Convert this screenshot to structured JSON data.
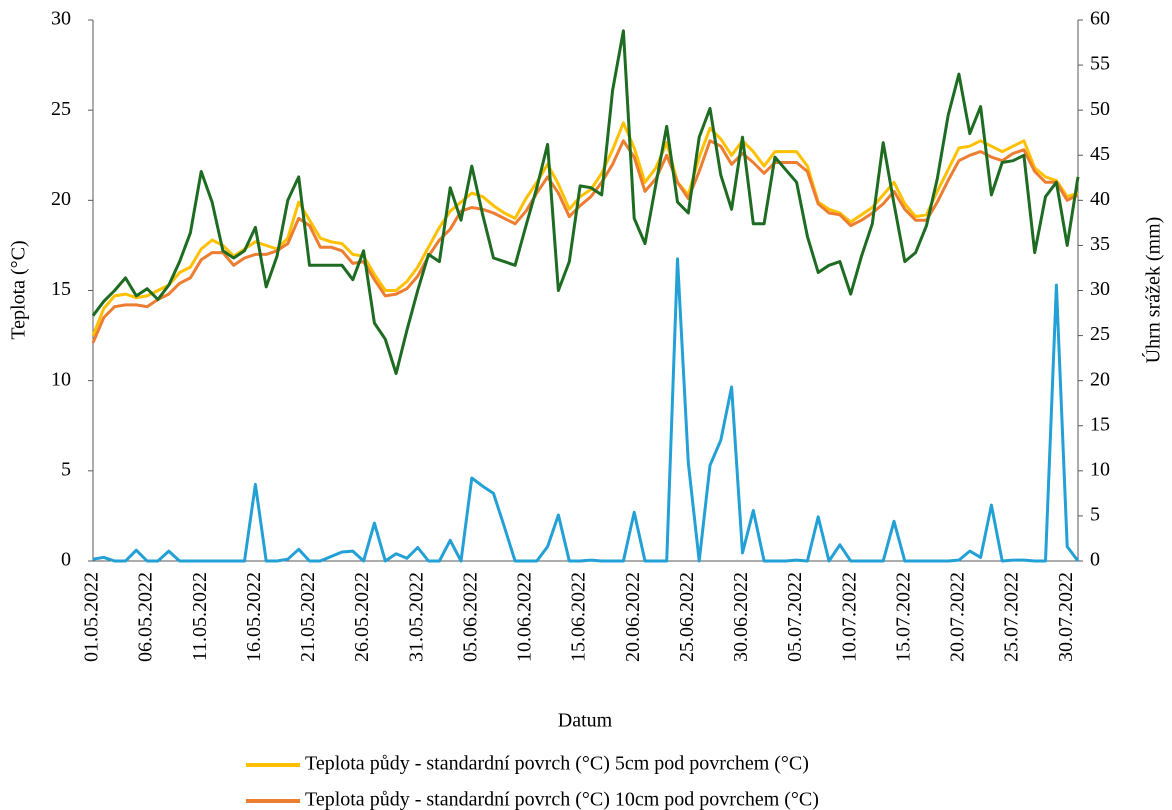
{
  "chart_data": {
    "type": "line",
    "x_label": "Datum",
    "y_label": "Teplota (°C)",
    "y2_label": "Úhrn srážek (mm)",
    "categories": [
      "01.05.2022",
      null,
      null,
      null,
      null,
      "06.05.2022",
      null,
      null,
      null,
      null,
      "11.05.2022",
      null,
      null,
      null,
      null,
      "16.05.2022",
      null,
      null,
      null,
      null,
      "21.05.2022",
      null,
      null,
      null,
      null,
      "26.05.2022",
      null,
      null,
      null,
      null,
      "31.05.2022",
      null,
      null,
      null,
      null,
      "05.06.2022",
      null,
      null,
      null,
      null,
      "10.06.2022",
      null,
      null,
      null,
      null,
      "15.06.2022",
      null,
      null,
      null,
      null,
      "20.06.2022",
      null,
      null,
      null,
      null,
      "25.06.2022",
      null,
      null,
      null,
      null,
      "30.06.2022",
      null,
      null,
      null,
      null,
      "05.07.2022",
      null,
      null,
      null,
      null,
      "10.07.2022",
      null,
      null,
      null,
      null,
      "15.07.2022",
      null,
      null,
      null,
      null,
      "20.07.2022",
      null,
      null,
      null,
      null,
      "25.07.2022",
      null,
      null,
      null,
      null,
      "30.07.2022",
      null
    ],
    "ylim": [
      0,
      30
    ],
    "yticks": [
      0,
      5,
      10,
      15,
      20,
      25,
      30
    ],
    "y2lim": [
      0,
      60
    ],
    "y2ticks": [
      0,
      5,
      10,
      15,
      20,
      25,
      30,
      35,
      40,
      45,
      50,
      55,
      60
    ],
    "series": [
      {
        "name": "Teplota půdy - standardní povrch (°C) 5cm pod povrchem (°C)",
        "color": "#FFC000",
        "values": [
          12.5,
          14.0,
          14.7,
          14.8,
          14.6,
          14.7,
          15.0,
          15.3,
          16.0,
          16.3,
          17.3,
          17.8,
          17.5,
          16.9,
          17.3,
          17.7,
          17.5,
          17.3,
          17.9,
          19.9,
          18.9,
          17.9,
          17.7,
          17.6,
          17.0,
          16.9,
          15.9,
          15.0,
          15.0,
          15.5,
          16.3,
          17.4,
          18.5,
          19.4,
          19.9,
          20.4,
          20.2,
          19.7,
          19.3,
          19.0,
          20.1,
          21.0,
          22.0,
          20.9,
          19.5,
          20.2,
          20.6,
          21.5,
          22.8,
          24.3,
          22.9,
          21.0,
          21.8,
          23.2,
          21.0,
          20.3,
          22.4,
          24.0,
          23.4,
          22.5,
          23.3,
          22.7,
          21.9,
          22.7,
          22.7,
          22.7,
          21.9,
          19.9,
          19.5,
          19.3,
          18.8,
          19.2,
          19.6,
          20.3,
          21.0,
          19.8,
          19.1,
          19.2,
          20.5,
          21.7,
          22.9,
          23.0,
          23.3,
          23.0,
          22.7,
          23.0,
          23.3,
          21.8,
          21.3,
          21.1,
          20.2,
          20.4
        ]
      },
      {
        "name": "Teplota půdy - standardní povrch (°C) 10cm pod povrchem (°C)",
        "color": "#ED7D31",
        "values": [
          12.1,
          13.5,
          14.1,
          14.2,
          14.2,
          14.1,
          14.5,
          14.8,
          15.4,
          15.7,
          16.7,
          17.1,
          17.1,
          16.4,
          16.8,
          17.0,
          17.0,
          17.2,
          17.6,
          19.0,
          18.6,
          17.4,
          17.4,
          17.2,
          16.5,
          16.6,
          15.6,
          14.7,
          14.8,
          15.1,
          15.8,
          16.9,
          17.8,
          18.4,
          19.4,
          19.6,
          19.5,
          19.3,
          19.0,
          18.7,
          19.4,
          20.4,
          21.3,
          20.4,
          19.1,
          19.7,
          20.2,
          21.0,
          22.0,
          23.3,
          22.4,
          20.5,
          21.2,
          22.5,
          21.0,
          20.1,
          21.6,
          23.3,
          23.0,
          22.0,
          22.6,
          22.1,
          21.5,
          22.1,
          22.1,
          22.1,
          21.6,
          19.8,
          19.3,
          19.2,
          18.6,
          18.9,
          19.3,
          19.8,
          20.5,
          19.5,
          18.9,
          18.9,
          19.9,
          21.1,
          22.2,
          22.5,
          22.7,
          22.4,
          22.2,
          22.6,
          22.8,
          21.6,
          21.0,
          21.0,
          20.0,
          20.3
        ]
      },
      {
        "color": "#1E6B22",
        "values": [
          13.6,
          14.4,
          15.0,
          15.7,
          14.7,
          15.1,
          14.5,
          15.3,
          16.6,
          18.2,
          21.6,
          19.9,
          17.2,
          16.8,
          17.2,
          18.5,
          15.2,
          16.9,
          20.0,
          21.3,
          16.4,
          16.4,
          16.4,
          16.4,
          15.6,
          17.2,
          13.2,
          12.3,
          10.4,
          12.8,
          15.0,
          17.0,
          16.6,
          20.7,
          18.9,
          21.9,
          19.2,
          16.8,
          16.6,
          16.4,
          18.6,
          20.7,
          23.1,
          15.0,
          16.6,
          20.8,
          20.7,
          20.3,
          26.1,
          29.4,
          19.0,
          17.6,
          20.9,
          24.1,
          19.9,
          19.3,
          23.5,
          25.1,
          21.4,
          19.5,
          23.5,
          18.7,
          18.7,
          22.4,
          21.7,
          21.0,
          18.0,
          16.0,
          16.4,
          16.6,
          14.8,
          16.9,
          18.7,
          23.2,
          19.8,
          16.6,
          17.1,
          18.6,
          21.2,
          24.7,
          27.0,
          23.7,
          25.2,
          20.3,
          22.1,
          22.2,
          22.5,
          17.1,
          20.2,
          21.0,
          17.5,
          21.3
        ]
      },
      {
        "color": "#23A0D6",
        "axis": "y2",
        "values": [
          0.2,
          0.4,
          0,
          0,
          1.2,
          0,
          0,
          1.1,
          0,
          0,
          0,
          0,
          0,
          0,
          0,
          8.5,
          0,
          0,
          0.2,
          1.3,
          0,
          0,
          0.5,
          1.0,
          1.1,
          0,
          4.2,
          0,
          0.8,
          0.3,
          1.5,
          0,
          0,
          2.3,
          0,
          9.2,
          8.3,
          7.5,
          3.8,
          0,
          0,
          0,
          1.6,
          5.1,
          0,
          0,
          0.1,
          0,
          0,
          0,
          5.4,
          0,
          0,
          0,
          33.5,
          10.9,
          0,
          10.6,
          13.4,
          19.3,
          0.9,
          5.6,
          0,
          0,
          0,
          0.1,
          0,
          4.9,
          0,
          1.8,
          0,
          0,
          0,
          0,
          4.4,
          0,
          0,
          0,
          0,
          0,
          0.1,
          1.1,
          0.4,
          6.2,
          0,
          0.1,
          0.1,
          0,
          0,
          30.6,
          1.6,
          0
        ]
      }
    ]
  }
}
